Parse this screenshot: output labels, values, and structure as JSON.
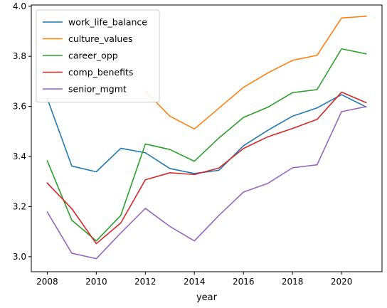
{
  "chart_data": {
    "type": "line",
    "title": "",
    "xlabel": "year",
    "ylabel": "",
    "xlim": [
      2007.35,
      2021.65
    ],
    "ylim": [
      2.94,
      4.005
    ],
    "xticks": [
      2008,
      2010,
      2012,
      2014,
      2016,
      2018,
      2020
    ],
    "yticks": [
      3.0,
      3.2,
      3.4,
      3.6,
      3.8,
      4.0
    ],
    "ytick_labels": [
      "3.0",
      "3.2",
      "3.4",
      "3.6",
      "3.8",
      "4.0"
    ],
    "grid": false,
    "legend_position": "upper-left",
    "x": [
      2008,
      2009,
      2010,
      2011,
      2012,
      2013,
      2014,
      2015,
      2016,
      2017,
      2018,
      2019,
      2020,
      2021
    ],
    "series": [
      {
        "name": "work_life_balance",
        "color": "#1f77b4",
        "values": [
          3.632,
          3.362,
          3.339,
          3.433,
          3.415,
          3.352,
          3.332,
          3.345,
          3.443,
          3.505,
          3.561,
          3.594,
          3.647,
          3.598
        ]
      },
      {
        "name": "culture_values",
        "color": "#ff7f0e",
        "values": [
          null,
          null,
          null,
          null,
          3.661,
          3.561,
          3.51,
          3.593,
          3.676,
          3.734,
          3.784,
          3.804,
          3.953,
          3.96
        ]
      },
      {
        "name": "career_opp",
        "color": "#2ca02c",
        "values": [
          3.383,
          3.146,
          3.063,
          3.165,
          3.45,
          3.428,
          3.381,
          3.474,
          3.556,
          3.597,
          3.655,
          3.667,
          3.83,
          3.81
        ]
      },
      {
        "name": "comp_benefits",
        "color": "#d62728",
        "values": [
          3.294,
          3.192,
          3.052,
          3.135,
          3.307,
          3.335,
          3.328,
          3.354,
          3.432,
          3.479,
          3.512,
          3.548,
          3.657,
          3.615
        ]
      },
      {
        "name": "senior_mgmt",
        "color": "#9467bd",
        "values": [
          3.179,
          3.014,
          2.992,
          3.095,
          3.193,
          3.121,
          3.063,
          3.165,
          3.258,
          3.293,
          3.355,
          3.367,
          3.579,
          3.599
        ]
      }
    ]
  }
}
